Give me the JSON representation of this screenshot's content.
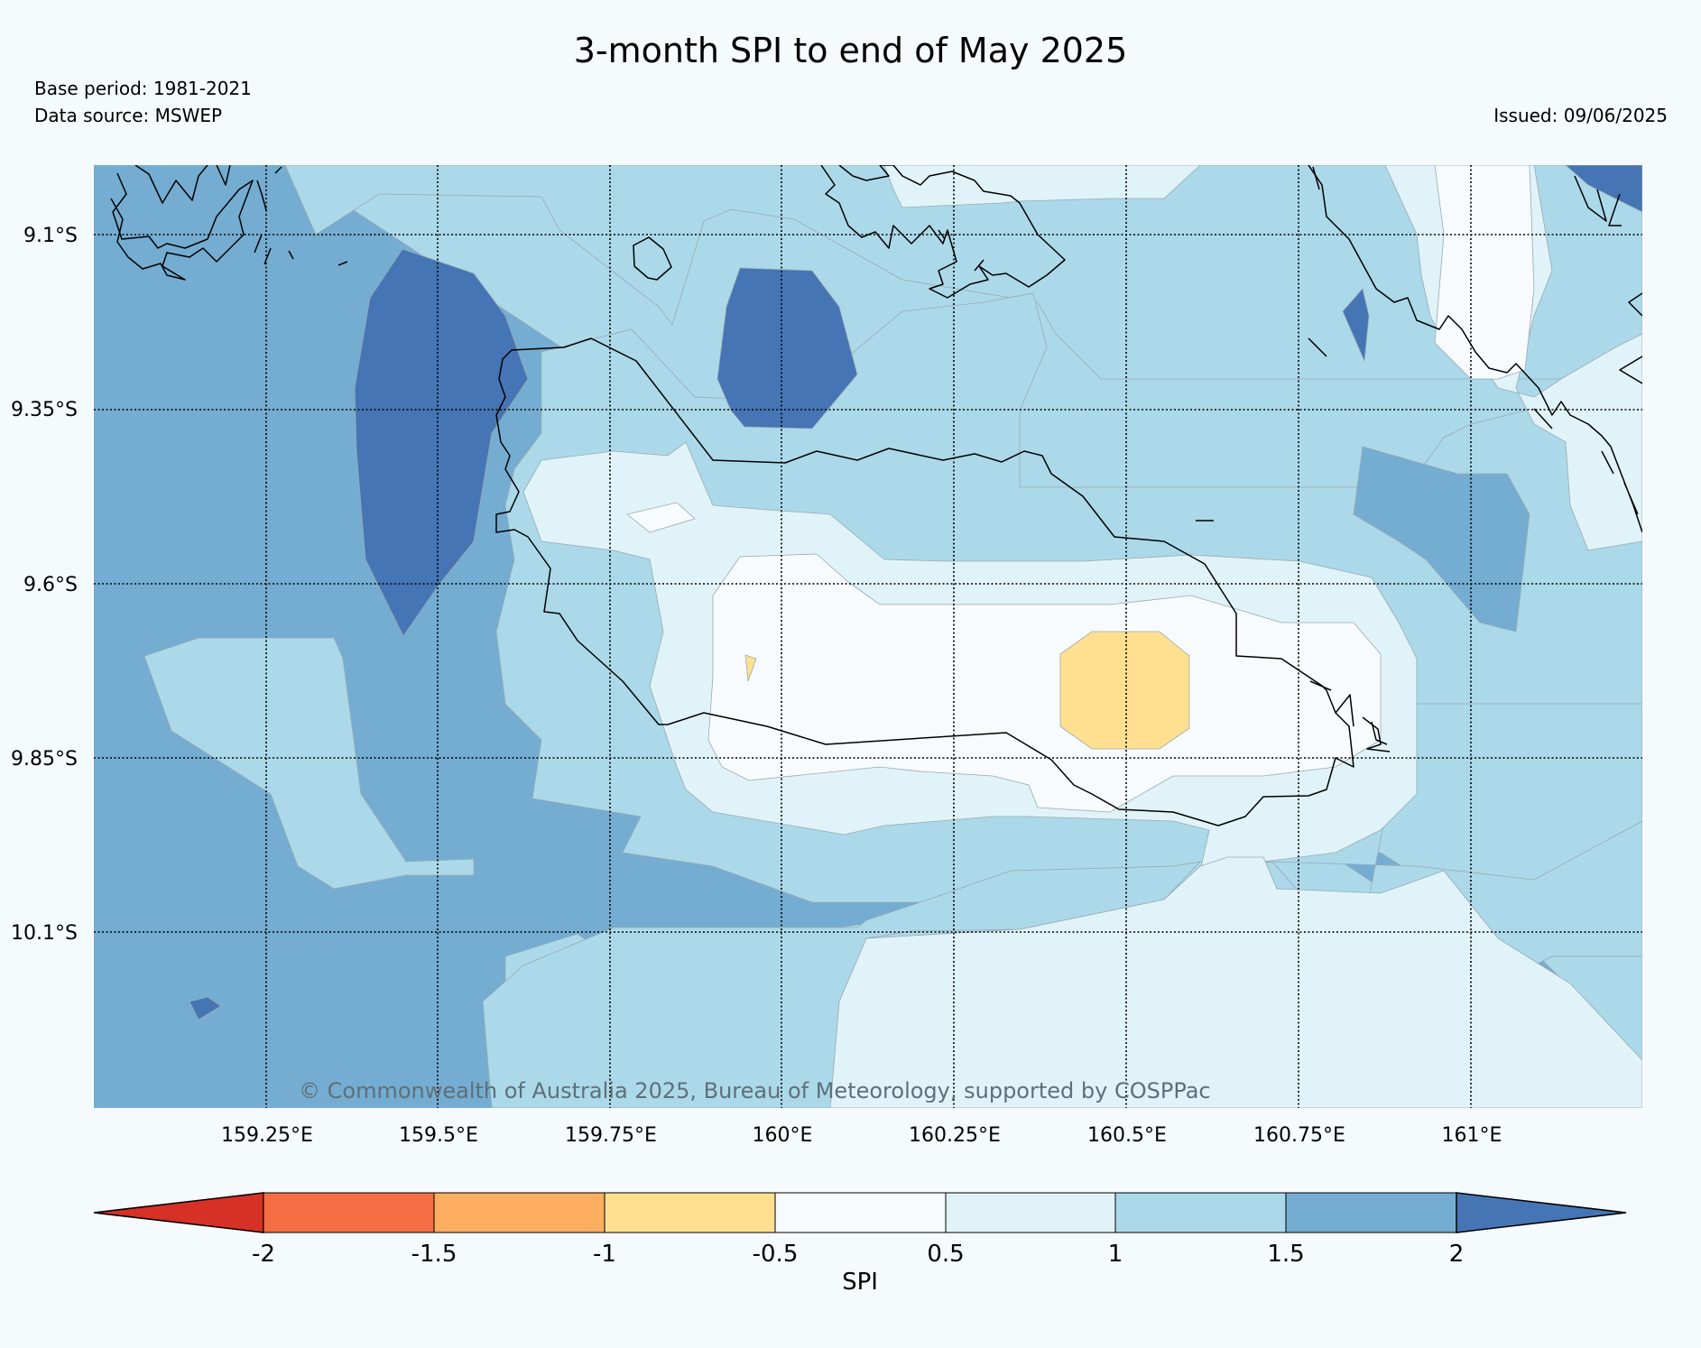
{
  "header": {
    "title": "3-month SPI to end of May 2025",
    "base_period": "Base period: 1981-2021",
    "data_source": "Data source: MSWEP",
    "issued": "Issued: 09/06/2025"
  },
  "map": {
    "latitude_labels": [
      "9.1°S",
      "9.35°S",
      "9.6°S",
      "9.85°S",
      "10.1°S"
    ],
    "longitude_labels": [
      "159.25°E",
      "159.5°E",
      "159.75°E",
      "160°E",
      "160.25°E",
      "160.5°E",
      "160.75°E",
      "161°E"
    ],
    "copyright": "© Commonwealth of Australia 2025, Bureau of Meteorology, supported by COSPPac",
    "grid": true,
    "coastline": "black outline"
  },
  "colorbar": {
    "label": "SPI",
    "ticks": [
      "-2",
      "-1.5",
      "-1",
      "-0.5",
      "0.5",
      "1",
      "1.5",
      "2"
    ],
    "bins": [
      {
        "range": "< -2",
        "color": "#d73027"
      },
      {
        "range": "-2 to -1.5",
        "color": "#f46d43"
      },
      {
        "range": "-1.5 to -1",
        "color": "#fdae61"
      },
      {
        "range": "-1 to -0.5",
        "color": "#fee090"
      },
      {
        "range": "-0.5 to 0.5",
        "color": "#f7fbfd"
      },
      {
        "range": "0.5 to 1",
        "color": "#e0f3f8"
      },
      {
        "range": "1 to 1.5",
        "color": "#abd9e9"
      },
      {
        "range": "1.5 to 2",
        "color": "#74add1"
      },
      {
        "range": "> 2",
        "color": "#4575b4"
      }
    ]
  }
}
